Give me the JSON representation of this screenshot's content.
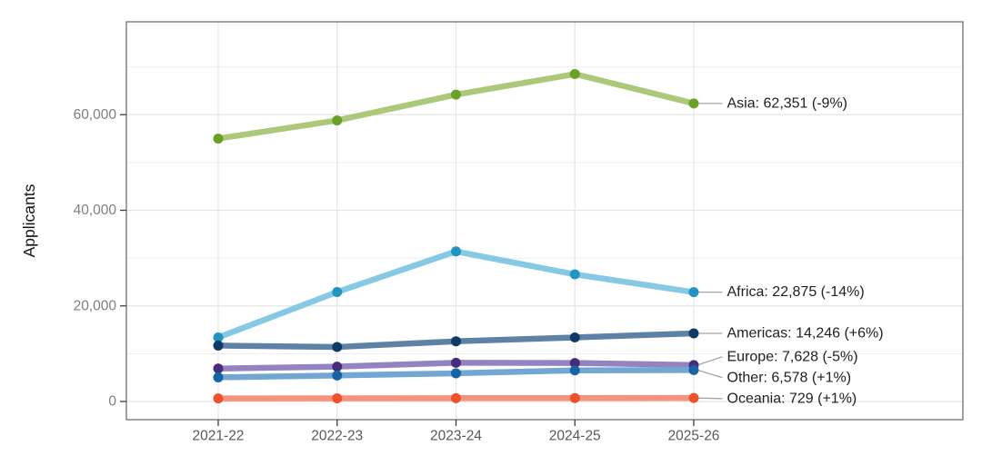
{
  "chart_data": {
    "type": "line",
    "title": "",
    "xlabel": "",
    "ylabel": "Applicants",
    "categories": [
      "2021-22",
      "2022-23",
      "2023-24",
      "2024-25",
      "2025-26"
    ],
    "series": [
      {
        "name": "Asia",
        "values": [
          55000,
          58800,
          64200,
          68500,
          62351
        ],
        "end_label": "Asia: 62,351 (-9%)",
        "line_color": "#abc979",
        "point_color": "#69a124"
      },
      {
        "name": "Africa",
        "values": [
          13400,
          22900,
          31400,
          26600,
          22875
        ],
        "end_label": "Africa: 22,875 (-14%)",
        "line_color": "#85c9e4",
        "point_color": "#2095c4"
      },
      {
        "name": "Americas",
        "values": [
          11700,
          11400,
          12600,
          13400,
          14246
        ],
        "end_label": "Americas: 14,246 (+6%)",
        "line_color": "#5d82a6",
        "point_color": "#0d3a66"
      },
      {
        "name": "Europe",
        "values": [
          6900,
          7300,
          8100,
          8050,
          7628
        ],
        "end_label": "Europe: 7,628 (-5%)",
        "line_color": "#9384c1",
        "point_color": "#452d7c"
      },
      {
        "name": "Other",
        "values": [
          5050,
          5450,
          5900,
          6500,
          6578
        ],
        "end_label": "Other: 6,578 (+1%)",
        "line_color": "#72a7d3",
        "point_color": "#1464a6"
      },
      {
        "name": "Oceania",
        "values": [
          650,
          670,
          700,
          720,
          729
        ],
        "end_label": "Oceania: 729 (+1%)",
        "line_color": "#f5937b",
        "point_color": "#ef512a"
      }
    ],
    "y_ticks": [
      {
        "value": 0,
        "label": "0"
      },
      {
        "value": 20000,
        "label": "20,000"
      },
      {
        "value": 40000,
        "label": "40,000"
      },
      {
        "value": 60000,
        "label": "60,000"
      }
    ],
    "y_minor_grid": [
      10000,
      30000,
      50000,
      70000
    ],
    "ylim": [
      0,
      79400
    ],
    "grid": true,
    "legend_position": "right-annotations"
  }
}
